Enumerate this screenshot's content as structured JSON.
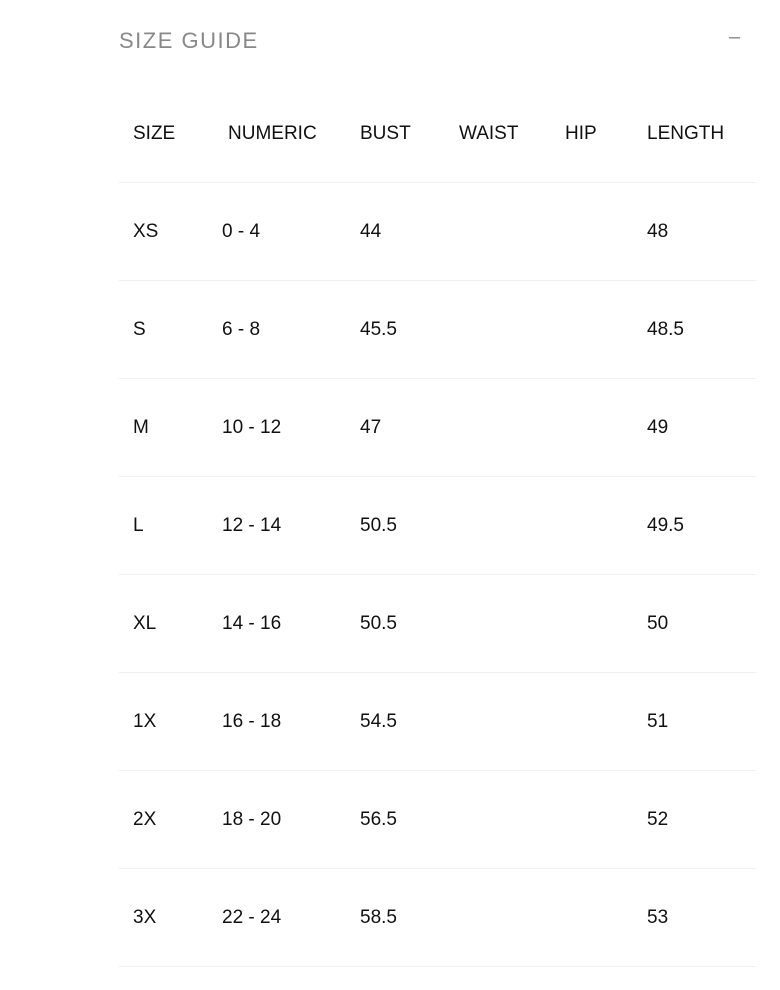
{
  "title": "SIZE GUIDE",
  "toggle_icon": "minus-icon",
  "toggle_label": "–",
  "columns": [
    "SIZE",
    "NUMERIC",
    "BUST",
    "WAIST",
    "HIP",
    "LENGTH"
  ],
  "rows": [
    [
      "XS",
      "0 - 4",
      "44",
      "",
      "",
      "48"
    ],
    [
      "S",
      "6 - 8",
      "45.5",
      "",
      "",
      "48.5"
    ],
    [
      "M",
      "10 - 12",
      "47",
      "",
      "",
      "49"
    ],
    [
      "L",
      "12 - 14",
      "50.5",
      "",
      "",
      "49.5"
    ],
    [
      "XL",
      "14 - 16",
      "50.5",
      "",
      "",
      "50"
    ],
    [
      "1X",
      "16 - 18",
      "54.5",
      "",
      "",
      "51"
    ],
    [
      "2X",
      "18 - 20",
      "56.5",
      "",
      "",
      "52"
    ],
    [
      "3X",
      "22 - 24",
      "58.5",
      "",
      "",
      "53"
    ]
  ]
}
